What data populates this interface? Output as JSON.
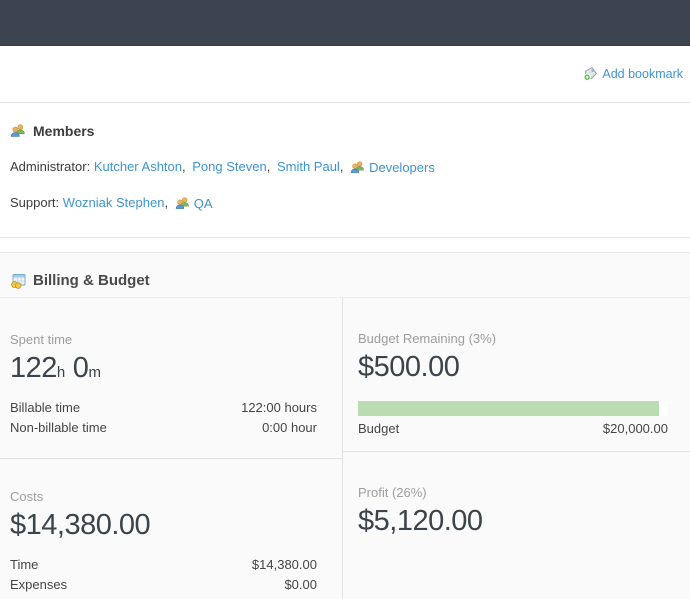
{
  "toolbar": {
    "add_bookmark_label": "Add bookmark"
  },
  "members": {
    "title": "Members",
    "separator": ",",
    "rows": [
      {
        "role": "Administrator:",
        "users": [
          "Kutcher Ashton",
          "Pong Steven",
          "Smith Paul"
        ],
        "groups": [
          "Developers"
        ]
      },
      {
        "role": "Support:",
        "users": [
          "Wozniak Stephen"
        ],
        "groups": [
          "QA"
        ]
      }
    ]
  },
  "billing": {
    "title": "Billing & Budget",
    "spent_time": {
      "label": "Spent time",
      "hours_value": "122",
      "hours_unit": "h",
      "minutes_value": "0",
      "minutes_unit": "m",
      "rows": [
        {
          "label": "Billable time",
          "value": "122:00 hours"
        },
        {
          "label": "Non-billable time",
          "value": "0:00 hour"
        }
      ]
    },
    "budget_remaining": {
      "label": "Budget Remaining (3%)",
      "amount": "$500.00",
      "progress_percent": 97,
      "row": {
        "label": "Budget",
        "value": "$20,000.00"
      }
    },
    "costs": {
      "label": "Costs",
      "amount": "$14,380.00",
      "rows": [
        {
          "label": "Time",
          "value": "$14,380.00"
        },
        {
          "label": "Expenses",
          "value": "$0.00"
        }
      ]
    },
    "profit": {
      "label": "Profit (26%)",
      "amount": "$5,120.00"
    }
  },
  "colors": {
    "top_bar": "#3d4450",
    "link_blue": "#3e94d1",
    "progress_green": "#b9dcb2"
  }
}
